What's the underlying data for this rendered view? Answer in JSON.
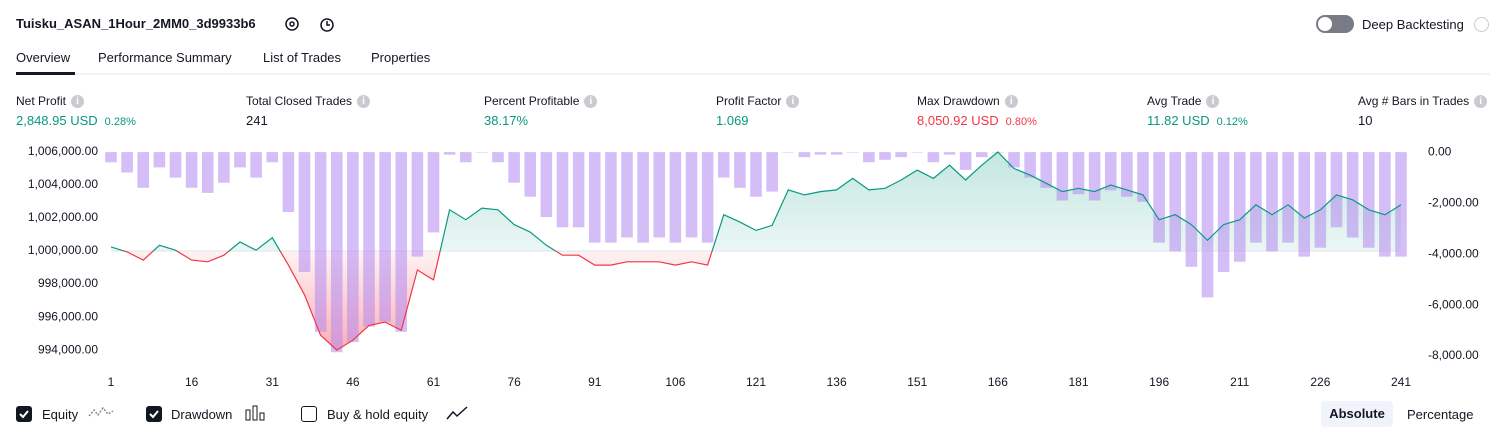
{
  "header": {
    "title": "Tuisku_ASAN_1Hour_2MM0_3d9933b6",
    "toggle_label": "Deep Backtesting"
  },
  "tabs": [
    "Overview",
    "Performance Summary",
    "List of Trades",
    "Properties"
  ],
  "metrics": [
    {
      "label": "Net Profit",
      "value": "2,848.95 USD",
      "pct": "0.28%",
      "color": "#089981"
    },
    {
      "label": "Total Closed Trades",
      "value": "241",
      "color": "#131722"
    },
    {
      "label": "Percent Profitable",
      "value": "38.17%",
      "color": "#089981"
    },
    {
      "label": "Profit Factor",
      "value": "1.069",
      "color": "#089981"
    },
    {
      "label": "Max Drawdown",
      "value": "8,050.92 USD",
      "pct": "0.80%",
      "color": "#f23645"
    },
    {
      "label": "Avg Trade",
      "value": "11.82 USD",
      "pct": "0.12%",
      "color": "#089981"
    },
    {
      "label": "Avg # Bars in Trades",
      "value": "10",
      "color": "#131722"
    }
  ],
  "chart_data": {
    "type": "combo",
    "x": [
      1,
      4,
      7,
      10,
      13,
      16,
      19,
      22,
      25,
      28,
      31,
      34,
      37,
      40,
      43,
      46,
      49,
      52,
      55,
      58,
      61,
      64,
      67,
      70,
      73,
      76,
      79,
      82,
      85,
      88,
      91,
      94,
      97,
      100,
      103,
      106,
      109,
      112,
      115,
      118,
      121,
      124,
      127,
      130,
      133,
      136,
      139,
      142,
      145,
      148,
      151,
      154,
      157,
      160,
      163,
      166,
      169,
      172,
      175,
      178,
      181,
      184,
      187,
      190,
      193,
      196,
      199,
      202,
      205,
      208,
      211,
      214,
      217,
      220,
      223,
      226,
      229,
      232,
      235,
      238,
      241
    ],
    "series": [
      {
        "name": "Equity",
        "color": "#089981",
        "negative_color": "#f23645",
        "baseline": 1000000,
        "values": [
          1000250,
          999950,
          999450,
          1000350,
          1000050,
          999450,
          999350,
          999750,
          1000550,
          1000050,
          1000800,
          999150,
          997350,
          994900,
          994000,
          994600,
          995500,
          995700,
          995200,
          998850,
          998250,
          1002500,
          1001900,
          1002600,
          1002500,
          1001600,
          1001150,
          1000350,
          999750,
          999750,
          999150,
          999150,
          999350,
          999350,
          999350,
          999150,
          999350,
          999150,
          1002200,
          1001750,
          1001250,
          1001550,
          1003700,
          1003400,
          1003600,
          1003700,
          1004400,
          1003700,
          1003800,
          1004300,
          1004900,
          1004400,
          1005200,
          1004300,
          1005200,
          1006000,
          1005000,
          1004600,
          1004100,
          1003600,
          1003800,
          1003600,
          1004000,
          1003700,
          1003400,
          1001900,
          1002200,
          1001600,
          1000650,
          1001600,
          1001900,
          1002800,
          1002200,
          1002800,
          1002000,
          1002500,
          1003400,
          1003100,
          1002500,
          1002200,
          1002800
        ]
      },
      {
        "name": "Drawdown",
        "color": "#b388f0",
        "axis": "y2",
        "values": [
          -400,
          -800,
          -1400,
          -600,
          -1000,
          -1400,
          -1600,
          -1200,
          -600,
          -1000,
          -400,
          -2350,
          -4700,
          -7050,
          -7850,
          -7450,
          -6850,
          -6650,
          -7050,
          -4100,
          -3150,
          -100,
          -400,
          0,
          -400,
          -1200,
          -1750,
          -2550,
          -2950,
          -2950,
          -3550,
          -3550,
          -3350,
          -3550,
          -3350,
          -3550,
          -3350,
          -3550,
          -1000,
          -1400,
          -1750,
          -1550,
          0,
          -200,
          -100,
          -100,
          0,
          -400,
          -300,
          -200,
          0,
          -400,
          -100,
          -700,
          -200,
          0,
          -600,
          -1000,
          -1400,
          -1900,
          -1650,
          -1900,
          -1500,
          -1750,
          -1950,
          -3550,
          -3900,
          -4500,
          -5700,
          -4700,
          -4300,
          -3550,
          -3900,
          -3550,
          -4100,
          -3750,
          -2950,
          -3350,
          -3750,
          -4100,
          -4100
        ]
      }
    ],
    "xlim": [
      1,
      241
    ],
    "xticks": [
      1,
      16,
      31,
      46,
      61,
      76,
      91,
      106,
      121,
      136,
      151,
      166,
      181,
      196,
      211,
      226,
      241
    ],
    "ylim": [
      993100,
      1006300
    ],
    "yticks": [
      {
        "value": 1006000,
        "label": "1,006,000.00"
      },
      {
        "value": 1004000,
        "label": "1,004,000.00"
      },
      {
        "value": 1002000,
        "label": "1,002,000.00"
      },
      {
        "value": 1000000,
        "label": "1,000,000.00"
      },
      {
        "value": 998000,
        "label": "998,000.00"
      },
      {
        "value": 996000,
        "label": "996,000.00"
      },
      {
        "value": 994000,
        "label": "994,000.00"
      }
    ],
    "y2lim": [
      -8350,
      200
    ],
    "y2ticks": [
      {
        "value": 0,
        "label": "0.00"
      },
      {
        "value": -2000,
        "label": "-2,000.00"
      },
      {
        "value": -4000,
        "label": "-4,000.00"
      },
      {
        "value": -6000,
        "label": "-6,000.00"
      },
      {
        "value": -8000,
        "label": "-8,000.00"
      }
    ]
  },
  "legend_extra": "Buy & hold equity",
  "modes": [
    "Absolute",
    "Percentage"
  ]
}
